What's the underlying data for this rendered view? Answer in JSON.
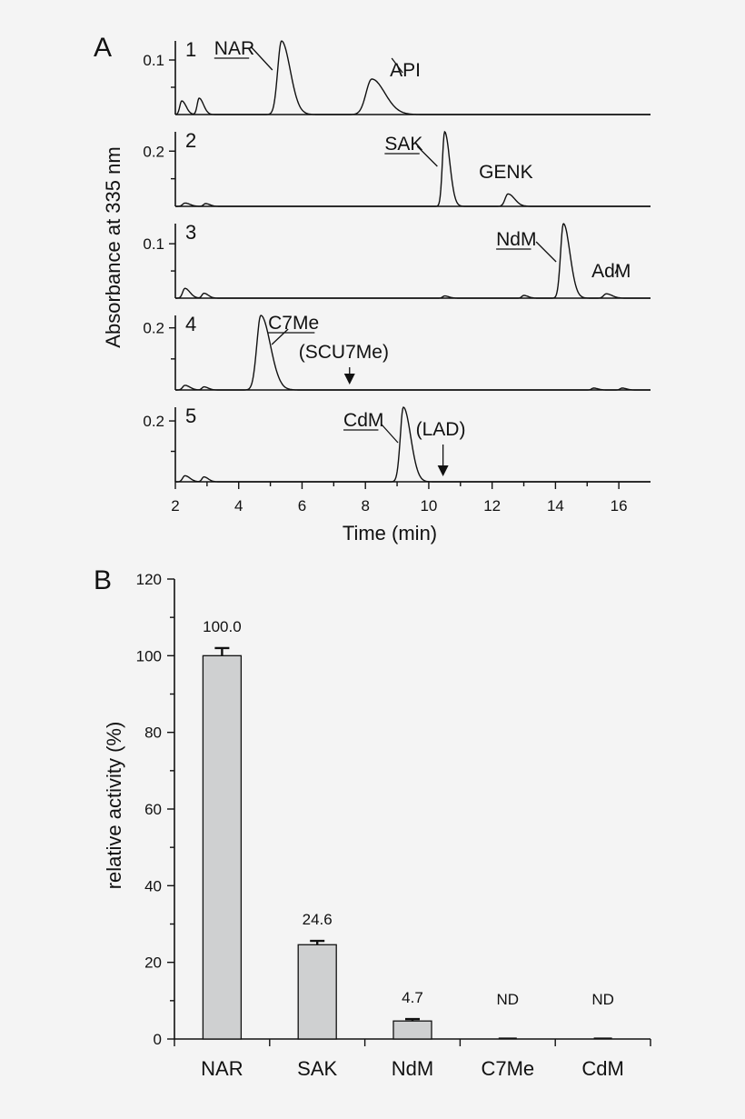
{
  "chart_data": [
    {
      "panel": "A",
      "type": "line",
      "xlabel": "Time (min)",
      "ylabel": "Absorbance at 335 nm",
      "xlim": [
        2,
        17
      ],
      "xticks": [
        2,
        4,
        6,
        8,
        10,
        12,
        14,
        16
      ],
      "traces": [
        {
          "number": "1",
          "ytick_label": "0.1",
          "ytick_value": 0.1,
          "ymax": 0.135,
          "peaks": [
            {
              "x": 2.2,
              "y": 0.025,
              "w": 0.06
            },
            {
              "x": 2.75,
              "y": 0.03,
              "w": 0.06
            },
            {
              "x": 5.35,
              "y": 0.135,
              "w": 0.12
            },
            {
              "x": 8.2,
              "y": 0.065,
              "w": 0.18
            }
          ],
          "labels": [
            {
              "text": "NAR",
              "underline": true,
              "x": 5.35
            },
            {
              "text": "API",
              "underline": false,
              "x": 8.2
            }
          ]
        },
        {
          "number": "2",
          "ytick_label": "0.2",
          "ytick_value": 0.2,
          "ymax": 0.27,
          "peaks": [
            {
              "x": 2.3,
              "y": 0.012,
              "w": 0.07
            },
            {
              "x": 2.95,
              "y": 0.01,
              "w": 0.06
            },
            {
              "x": 10.5,
              "y": 0.27,
              "w": 0.07
            },
            {
              "x": 12.5,
              "y": 0.045,
              "w": 0.09
            }
          ],
          "labels": [
            {
              "text": "SAK",
              "underline": true,
              "x": 10.5
            },
            {
              "text": "GENK",
              "underline": false,
              "x": 12.5
            }
          ]
        },
        {
          "number": "3",
          "ytick_label": "0.1",
          "ytick_value": 0.1,
          "ymax": 0.137,
          "peaks": [
            {
              "x": 2.3,
              "y": 0.018,
              "w": 0.07
            },
            {
              "x": 2.9,
              "y": 0.009,
              "w": 0.06
            },
            {
              "x": 10.5,
              "y": 0.004,
              "w": 0.06
            },
            {
              "x": 13.0,
              "y": 0.005,
              "w": 0.06
            },
            {
              "x": 14.25,
              "y": 0.137,
              "w": 0.09
            },
            {
              "x": 15.6,
              "y": 0.008,
              "w": 0.08
            }
          ],
          "labels": [
            {
              "text": "NdM",
              "underline": true,
              "x": 14.25
            },
            {
              "text": "AdM",
              "underline": false,
              "x": 15.6
            }
          ]
        },
        {
          "number": "4",
          "ytick_label": "0.2",
          "ytick_value": 0.2,
          "ymax": 0.24,
          "peaks": [
            {
              "x": 2.3,
              "y": 0.015,
              "w": 0.07
            },
            {
              "x": 2.9,
              "y": 0.01,
              "w": 0.06
            },
            {
              "x": 4.7,
              "y": 0.24,
              "w": 0.13
            },
            {
              "x": 15.2,
              "y": 0.006,
              "w": 0.06
            },
            {
              "x": 16.1,
              "y": 0.006,
              "w": 0.06
            }
          ],
          "labels": [
            {
              "text": "C7Me",
              "underline": true,
              "x": 4.7
            },
            {
              "text": "(SCU7Me)",
              "underline": false,
              "x": 7.5,
              "arrow": true
            }
          ]
        },
        {
          "number": "5",
          "ytick_label": "0.2",
          "ytick_value": 0.2,
          "ymax": 0.245,
          "peaks": [
            {
              "x": 2.3,
              "y": 0.02,
              "w": 0.07
            },
            {
              "x": 2.9,
              "y": 0.016,
              "w": 0.06
            },
            {
              "x": 9.2,
              "y": 0.245,
              "w": 0.1
            }
          ],
          "labels": [
            {
              "text": "CdM",
              "underline": true,
              "x": 9.2
            },
            {
              "text": "(LAD)",
              "underline": false,
              "x": 10.45,
              "arrow": true
            }
          ]
        }
      ]
    },
    {
      "panel": "B",
      "type": "bar",
      "categories": [
        "NAR",
        "SAK",
        "NdM",
        "C7Me",
        "CdM"
      ],
      "values": [
        100.0,
        24.6,
        4.7,
        0,
        0
      ],
      "errors": [
        2.0,
        1.0,
        0.5,
        0,
        0
      ],
      "value_labels": [
        "100.0",
        "24.6",
        "4.7",
        "ND",
        "ND"
      ],
      "ylabel": "relative activity (%)",
      "ylim": [
        0,
        120
      ],
      "yticks": [
        0,
        20,
        40,
        60,
        80,
        100,
        120
      ]
    }
  ]
}
